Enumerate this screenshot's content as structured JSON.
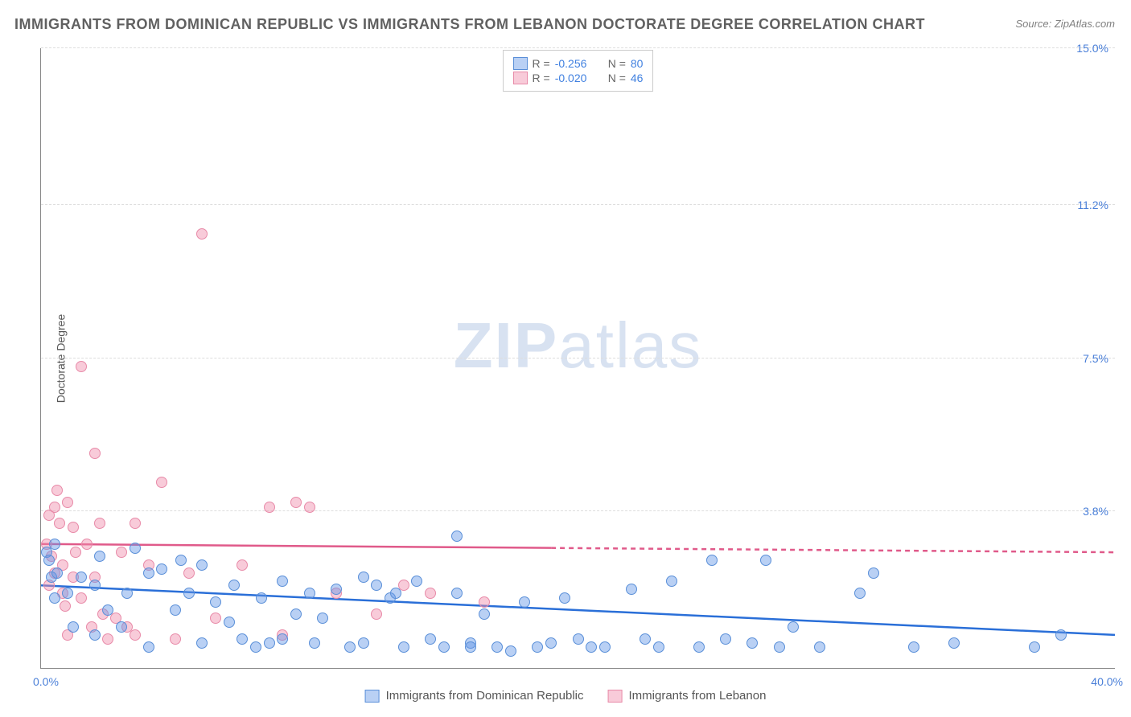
{
  "title": "IMMIGRANTS FROM DOMINICAN REPUBLIC VS IMMIGRANTS FROM LEBANON DOCTORATE DEGREE CORRELATION CHART",
  "source": "Source: ZipAtlas.com",
  "ylabel": "Doctorate Degree",
  "watermark_a": "ZIP",
  "watermark_b": "atlas",
  "legend_top": {
    "series1": {
      "r_label": "R =",
      "r_value": "-0.256",
      "n_label": "N =",
      "n_value": "80"
    },
    "series2": {
      "r_label": "R =",
      "r_value": "-0.020",
      "n_label": "N =",
      "n_value": "46"
    }
  },
  "legend_bottom": {
    "series1": "Immigrants from Dominican Republic",
    "series2": "Immigrants from Lebanon"
  },
  "axes": {
    "xlim": [
      0,
      40
    ],
    "ylim": [
      0,
      15
    ],
    "x_tick_min": "0.0%",
    "x_tick_max": "40.0%",
    "y_ticks": [
      {
        "value": 3.8,
        "label": "3.8%"
      },
      {
        "value": 7.5,
        "label": "7.5%"
      },
      {
        "value": 11.2,
        "label": "11.2%"
      },
      {
        "value": 15.0,
        "label": "15.0%"
      }
    ]
  },
  "colors": {
    "series1_fill": "rgba(100,150,230,0.45)",
    "series1_stroke": "#5a8fd8",
    "series2_fill": "rgba(240,140,170,0.45)",
    "series2_stroke": "#e88aa8",
    "trend1": "#2a6fd8",
    "trend2": "#e05a8a",
    "r_text": "#4080e0",
    "n_text": "#4080e0",
    "label_text": "#666"
  },
  "trendlines": {
    "series1": {
      "y_at_x0": 2.0,
      "y_at_xmax": 0.8,
      "solid_until_x": 40
    },
    "series2": {
      "y_at_x0": 3.0,
      "y_at_xmax": 2.8,
      "solid_until_x": 19
    }
  },
  "series1_points": [
    [
      0.2,
      2.8
    ],
    [
      0.3,
      2.6
    ],
    [
      0.5,
      3.0
    ],
    [
      0.4,
      2.2
    ],
    [
      0.6,
      2.3
    ],
    [
      0.5,
      1.7
    ],
    [
      1.0,
      1.8
    ],
    [
      1.2,
      1.0
    ],
    [
      1.5,
      2.2
    ],
    [
      2.0,
      2.0
    ],
    [
      2.0,
      0.8
    ],
    [
      2.2,
      2.7
    ],
    [
      2.5,
      1.4
    ],
    [
      3.0,
      1.0
    ],
    [
      3.2,
      1.8
    ],
    [
      3.5,
      2.9
    ],
    [
      4.0,
      0.5
    ],
    [
      4.0,
      2.3
    ],
    [
      4.5,
      2.4
    ],
    [
      5.0,
      1.4
    ],
    [
      5.2,
      2.6
    ],
    [
      5.5,
      1.8
    ],
    [
      6.0,
      2.5
    ],
    [
      6.0,
      0.6
    ],
    [
      6.5,
      1.6
    ],
    [
      7.0,
      1.1
    ],
    [
      7.2,
      2.0
    ],
    [
      7.5,
      0.7
    ],
    [
      8.0,
      0.5
    ],
    [
      8.2,
      1.7
    ],
    [
      8.5,
      0.6
    ],
    [
      9.0,
      2.1
    ],
    [
      9.0,
      0.7
    ],
    [
      9.5,
      1.3
    ],
    [
      10.0,
      1.8
    ],
    [
      10.2,
      0.6
    ],
    [
      10.5,
      1.2
    ],
    [
      11.0,
      1.9
    ],
    [
      11.5,
      0.5
    ],
    [
      12.0,
      0.6
    ],
    [
      12.0,
      2.2
    ],
    [
      12.5,
      2.0
    ],
    [
      13.0,
      1.7
    ],
    [
      13.2,
      1.8
    ],
    [
      13.5,
      0.5
    ],
    [
      14.0,
      2.1
    ],
    [
      14.5,
      0.7
    ],
    [
      15.0,
      0.5
    ],
    [
      15.5,
      3.2
    ],
    [
      15.5,
      1.8
    ],
    [
      16.0,
      0.6
    ],
    [
      16.0,
      0.5
    ],
    [
      16.5,
      1.3
    ],
    [
      17.0,
      0.5
    ],
    [
      17.5,
      0.4
    ],
    [
      18.0,
      1.6
    ],
    [
      18.5,
      0.5
    ],
    [
      19.0,
      0.6
    ],
    [
      19.5,
      1.7
    ],
    [
      20.0,
      0.7
    ],
    [
      20.5,
      0.5
    ],
    [
      21.0,
      0.5
    ],
    [
      22.0,
      1.9
    ],
    [
      22.5,
      0.7
    ],
    [
      23.0,
      0.5
    ],
    [
      23.5,
      2.1
    ],
    [
      24.5,
      0.5
    ],
    [
      25.0,
      2.6
    ],
    [
      25.5,
      0.7
    ],
    [
      26.5,
      0.6
    ],
    [
      27.0,
      2.6
    ],
    [
      27.5,
      0.5
    ],
    [
      28.0,
      1.0
    ],
    [
      29.0,
      0.5
    ],
    [
      30.5,
      1.8
    ],
    [
      31.0,
      2.3
    ],
    [
      32.5,
      0.5
    ],
    [
      34.0,
      0.6
    ],
    [
      37.0,
      0.5
    ],
    [
      38.0,
      0.8
    ]
  ],
  "series2_points": [
    [
      0.2,
      3.0
    ],
    [
      0.3,
      3.7
    ],
    [
      0.3,
      2.0
    ],
    [
      0.4,
      2.7
    ],
    [
      0.5,
      3.9
    ],
    [
      0.5,
      2.3
    ],
    [
      0.6,
      4.3
    ],
    [
      0.7,
      3.5
    ],
    [
      0.8,
      2.5
    ],
    [
      0.8,
      1.8
    ],
    [
      0.9,
      1.5
    ],
    [
      1.0,
      4.0
    ],
    [
      1.0,
      0.8
    ],
    [
      1.2,
      2.2
    ],
    [
      1.2,
      3.4
    ],
    [
      1.3,
      2.8
    ],
    [
      1.5,
      7.3
    ],
    [
      1.5,
      1.7
    ],
    [
      1.7,
      3.0
    ],
    [
      1.9,
      1.0
    ],
    [
      2.0,
      5.2
    ],
    [
      2.0,
      2.2
    ],
    [
      2.2,
      3.5
    ],
    [
      2.3,
      1.3
    ],
    [
      2.5,
      0.7
    ],
    [
      2.8,
      1.2
    ],
    [
      3.0,
      2.8
    ],
    [
      3.2,
      1.0
    ],
    [
      3.5,
      3.5
    ],
    [
      3.5,
      0.8
    ],
    [
      4.0,
      2.5
    ],
    [
      4.5,
      4.5
    ],
    [
      5.0,
      0.7
    ],
    [
      5.5,
      2.3
    ],
    [
      6.0,
      10.5
    ],
    [
      6.5,
      1.2
    ],
    [
      7.5,
      2.5
    ],
    [
      8.5,
      3.9
    ],
    [
      9.0,
      0.8
    ],
    [
      9.5,
      4.0
    ],
    [
      10.0,
      3.9
    ],
    [
      11.0,
      1.8
    ],
    [
      12.5,
      1.3
    ],
    [
      13.5,
      2.0
    ],
    [
      14.5,
      1.8
    ],
    [
      16.5,
      1.6
    ]
  ]
}
